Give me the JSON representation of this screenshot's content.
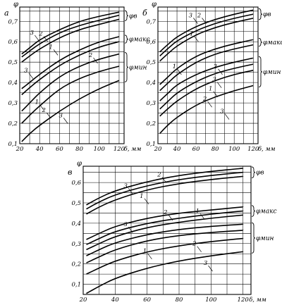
{
  "chart_data": [
    {
      "type": "line",
      "panel_label": "а",
      "ylabel": "φ",
      "xlabel": "δ, мм",
      "xlim": [
        20,
        125
      ],
      "ylim": [
        0.1,
        0.77
      ],
      "x_ticks": [
        "20",
        "40",
        "60",
        "80",
        "100",
        "120"
      ],
      "y_ticks": [
        "0,1",
        "0,2",
        "0,3",
        "0,4",
        "0,5",
        "0,6",
        "0,7"
      ],
      "grid": true,
      "x": [
        22,
        30,
        40,
        60,
        80,
        100,
        120
      ],
      "groups": [
        {
          "label": "φв",
          "series": [
            {
              "name": "3",
              "values": [
                0.54,
                0.57,
                0.61,
                0.66,
                0.7,
                0.725,
                0.745
              ]
            },
            {
              "name": "2",
              "values": [
                0.525,
                0.555,
                0.59,
                0.645,
                0.68,
                0.705,
                0.73
              ]
            },
            {
              "name": "1",
              "values": [
                0.5,
                0.53,
                0.565,
                0.62,
                0.66,
                0.685,
                0.71
              ]
            }
          ]
        },
        {
          "label": "φмакс",
          "series": [
            {
              "name": "3",
              "values": [
                0.37,
                0.4,
                0.44,
                0.51,
                0.56,
                0.6,
                0.625
              ]
            },
            {
              "name": "2",
              "values": [
                0.34,
                0.375,
                0.415,
                0.485,
                0.535,
                0.575,
                0.6
              ]
            }
          ]
        },
        {
          "label": "φмин",
          "series": [
            {
              "name": "1",
              "values": [
                0.26,
                0.3,
                0.35,
                0.43,
                0.48,
                0.515,
                0.54
              ]
            },
            {
              "name": "2",
              "values": [
                0.2,
                0.24,
                0.285,
                0.37,
                0.42,
                0.455,
                0.48
              ]
            },
            {
              "name": "3",
              "values": [
                0.11,
                0.15,
                0.19,
                0.26,
                0.32,
                0.37,
                0.41
              ]
            }
          ]
        }
      ],
      "curve_labels": [
        {
          "text": "3",
          "x": 33,
          "y": 0.635
        },
        {
          "text": "2",
          "x": 42,
          "y": 0.63
        },
        {
          "text": "1",
          "x": 52,
          "y": 0.565
        },
        {
          "text": "2",
          "x": 92,
          "y": 0.525
        },
        {
          "text": "3",
          "x": 27,
          "y": 0.45
        },
        {
          "text": "1",
          "x": 38,
          "y": 0.295
        },
        {
          "text": "2",
          "x": 45,
          "y": 0.255
        },
        {
          "text": "3",
          "x": 62,
          "y": 0.23
        }
      ]
    },
    {
      "type": "line",
      "panel_label": "б",
      "ylabel": "φ",
      "xlabel": "δ, мм",
      "xlim": [
        20,
        125
      ],
      "ylim": [
        0.1,
        0.77
      ],
      "x_ticks": [
        "20",
        "40",
        "60",
        "80",
        "100",
        "120"
      ],
      "y_ticks": [
        "0,1",
        "0,2",
        "0,3",
        "0,4",
        "0,5",
        "0,6",
        "0,7"
      ],
      "grid": true,
      "x": [
        22,
        30,
        40,
        60,
        80,
        100,
        120
      ],
      "groups": [
        {
          "label": "φв",
          "series": [
            {
              "name": "3",
              "values": [
                0.55,
                0.585,
                0.625,
                0.675,
                0.71,
                0.735,
                0.755
              ]
            },
            {
              "name": "2",
              "values": [
                0.53,
                0.565,
                0.605,
                0.655,
                0.69,
                0.715,
                0.735
              ]
            },
            {
              "name": "1",
              "values": [
                0.505,
                0.54,
                0.58,
                0.635,
                0.67,
                0.695,
                0.715
              ]
            }
          ]
        },
        {
          "label": "φмакс",
          "series": [
            {
              "name": "3",
              "values": [
                0.39,
                0.425,
                0.47,
                0.53,
                0.565,
                0.59,
                0.61
              ]
            },
            {
              "name": "2",
              "values": [
                0.36,
                0.395,
                0.44,
                0.5,
                0.54,
                0.565,
                0.585
              ]
            }
          ]
        },
        {
          "label": "φмин",
          "series": [
            {
              "name": "3",
              "values": [
                0.31,
                0.345,
                0.39,
                0.44,
                0.475,
                0.5,
                0.52
              ]
            },
            {
              "name": "1",
              "values": [
                0.27,
                0.305,
                0.35,
                0.405,
                0.445,
                0.47,
                0.49
              ]
            },
            {
              "name": "2",
              "values": [
                0.235,
                0.27,
                0.31,
                0.37,
                0.41,
                0.44,
                0.46
              ]
            },
            {
              "name": "3",
              "values": [
                0.15,
                0.19,
                0.23,
                0.29,
                0.33,
                0.36,
                0.385
              ]
            }
          ]
        }
      ],
      "curve_labels": [
        {
          "text": "3",
          "x": 55,
          "y": 0.72
        },
        {
          "text": "2",
          "x": 64,
          "y": 0.72
        },
        {
          "text": "1",
          "x": 56,
          "y": 0.63
        },
        {
          "text": "1",
          "x": 38,
          "y": 0.47
        },
        {
          "text": "2",
          "x": 81,
          "y": 0.47
        },
        {
          "text": "3",
          "x": 80,
          "y": 0.405
        },
        {
          "text": "1",
          "x": 76,
          "y": 0.36
        },
        {
          "text": "2",
          "x": 70,
          "y": 0.31
        },
        {
          "text": "3",
          "x": 88,
          "y": 0.25
        }
      ]
    },
    {
      "type": "line",
      "panel_label": "в",
      "ylabel": "φ",
      "xlabel": "δ, мм",
      "xlim": [
        20,
        125
      ],
      "ylim": [
        0.05,
        0.68
      ],
      "x_ticks": [
        "20",
        "40",
        "60",
        "80",
        "100",
        "120"
      ],
      "y_ticks": [
        "0,1",
        "0,2",
        "0,3",
        "0,4",
        "0,5",
        "0,6"
      ],
      "grid": true,
      "x": [
        22,
        30,
        40,
        60,
        80,
        100,
        120
      ],
      "groups": [
        {
          "label": "φв",
          "series": [
            {
              "name": "2",
              "values": [
                0.49,
                0.525,
                0.56,
                0.605,
                0.635,
                0.655,
                0.67
              ]
            },
            {
              "name": "3",
              "values": [
                0.47,
                0.505,
                0.54,
                0.585,
                0.615,
                0.635,
                0.65
              ]
            },
            {
              "name": "1",
              "values": [
                0.445,
                0.48,
                0.515,
                0.565,
                0.595,
                0.615,
                0.63
              ]
            }
          ]
        },
        {
          "label": "φмакс",
          "series": [
            {
              "name": "1",
              "values": [
                0.32,
                0.35,
                0.385,
                0.425,
                0.45,
                0.465,
                0.48
              ]
            },
            {
              "name": "2",
              "values": [
                0.295,
                0.325,
                0.36,
                0.4,
                0.425,
                0.445,
                0.46
              ]
            },
            {
              "name": "3",
              "values": [
                0.27,
                0.3,
                0.335,
                0.38,
                0.405,
                0.425,
                0.44
              ]
            }
          ]
        },
        {
          "label": "φмин",
          "series": [
            {
              "name": "1",
              "values": [
                0.24,
                0.27,
                0.305,
                0.345,
                0.37,
                0.385,
                0.395
              ]
            },
            {
              "name": "2",
              "values": [
                0.205,
                0.235,
                0.27,
                0.315,
                0.34,
                0.355,
                0.365
              ]
            },
            {
              "name": "3",
              "values": [
                0.15,
                0.18,
                0.215,
                0.26,
                0.29,
                0.31,
                0.325
              ]
            },
            {
              "name": "3",
              "values": [
                0.055,
                0.09,
                0.13,
                0.18,
                0.215,
                0.24,
                0.26
              ]
            }
          ]
        }
      ],
      "curve_labels": [
        {
          "text": "2",
          "x": 68,
          "y": 0.63
        },
        {
          "text": "3",
          "x": 47,
          "y": 0.575
        },
        {
          "text": "1",
          "x": 57,
          "y": 0.525
        },
        {
          "text": "2",
          "x": 72,
          "y": 0.445
        },
        {
          "text": "1",
          "x": 92,
          "y": 0.45
        },
        {
          "text": "3",
          "x": 47,
          "y": 0.385
        },
        {
          "text": "1",
          "x": 59,
          "y": 0.255
        },
        {
          "text": "2",
          "x": 90,
          "y": 0.29
        },
        {
          "text": "3",
          "x": 97,
          "y": 0.195
        }
      ]
    }
  ]
}
